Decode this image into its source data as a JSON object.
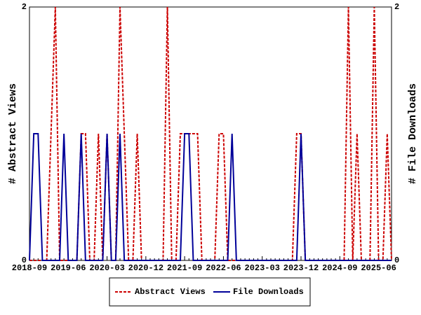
{
  "chart_data": {
    "type": "line",
    "categories": [
      "2018-09",
      null,
      null,
      null,
      null,
      null,
      null,
      null,
      null,
      "2019-06",
      null,
      null,
      null,
      null,
      null,
      null,
      null,
      null,
      "2020-03",
      null,
      null,
      null,
      null,
      null,
      null,
      null,
      null,
      "2020-12",
      null,
      null,
      null,
      null,
      null,
      null,
      null,
      null,
      "2021-09",
      null,
      null,
      null,
      null,
      null,
      null,
      null,
      null,
      "2022-06",
      null,
      null,
      null,
      null,
      null,
      null,
      null,
      null,
      "2023-03",
      null,
      null,
      null,
      null,
      null,
      null,
      null,
      null,
      "2023-12",
      null,
      null,
      null,
      null,
      null,
      null,
      null,
      null,
      "2024-09",
      null,
      null,
      null,
      null,
      null,
      null,
      null,
      null,
      "2025-06",
      null,
      null,
      null
    ],
    "ylabel": "# Abstract Views",
    "y2label": "# File Downloads",
    "ylim": [
      0,
      2
    ],
    "yticks": [
      0,
      2
    ],
    "y2lim": [
      0,
      2
    ],
    "y2ticks": [
      0,
      2
    ],
    "legend": "bottom",
    "series": [
      {
        "name": "Abstract Views",
        "color": "#cc0000",
        "dashed": true,
        "values": [
          0,
          0,
          0,
          0,
          0,
          1,
          2,
          0,
          0,
          0,
          0,
          0,
          1,
          1,
          0,
          0,
          1,
          0,
          1,
          0,
          0,
          2,
          1,
          0,
          0,
          1,
          0,
          0,
          0,
          0,
          0,
          0,
          2,
          0,
          0,
          1,
          1,
          1,
          1,
          1,
          0,
          0,
          0,
          0,
          1,
          1,
          0,
          0,
          0,
          0,
          0,
          0,
          0,
          0,
          0,
          0,
          0,
          0,
          0,
          0,
          0,
          0,
          1,
          1,
          0,
          0,
          0,
          0,
          0,
          0,
          0,
          0,
          0,
          0,
          2,
          0,
          1,
          0,
          0,
          0,
          2,
          0,
          0,
          1,
          0
        ]
      },
      {
        "name": "File Downloads",
        "color": "#000099",
        "axis": "y2",
        "values": [
          0,
          1,
          1,
          0,
          0,
          0,
          0,
          0,
          1,
          0,
          0,
          0,
          1,
          0,
          0,
          0,
          0,
          0,
          1,
          0,
          0,
          1,
          0,
          0,
          0,
          0,
          0,
          0,
          0,
          0,
          0,
          0,
          0,
          0,
          0,
          0,
          1,
          1,
          0,
          0,
          0,
          0,
          0,
          0,
          0,
          0,
          0,
          1,
          0,
          0,
          0,
          0,
          0,
          0,
          0,
          0,
          0,
          0,
          0,
          0,
          0,
          0,
          0,
          1,
          0,
          0,
          0,
          0,
          0,
          0,
          0,
          0,
          0,
          0,
          0,
          0,
          0,
          0,
          0,
          0,
          0,
          0,
          0,
          0,
          0
        ]
      }
    ]
  }
}
